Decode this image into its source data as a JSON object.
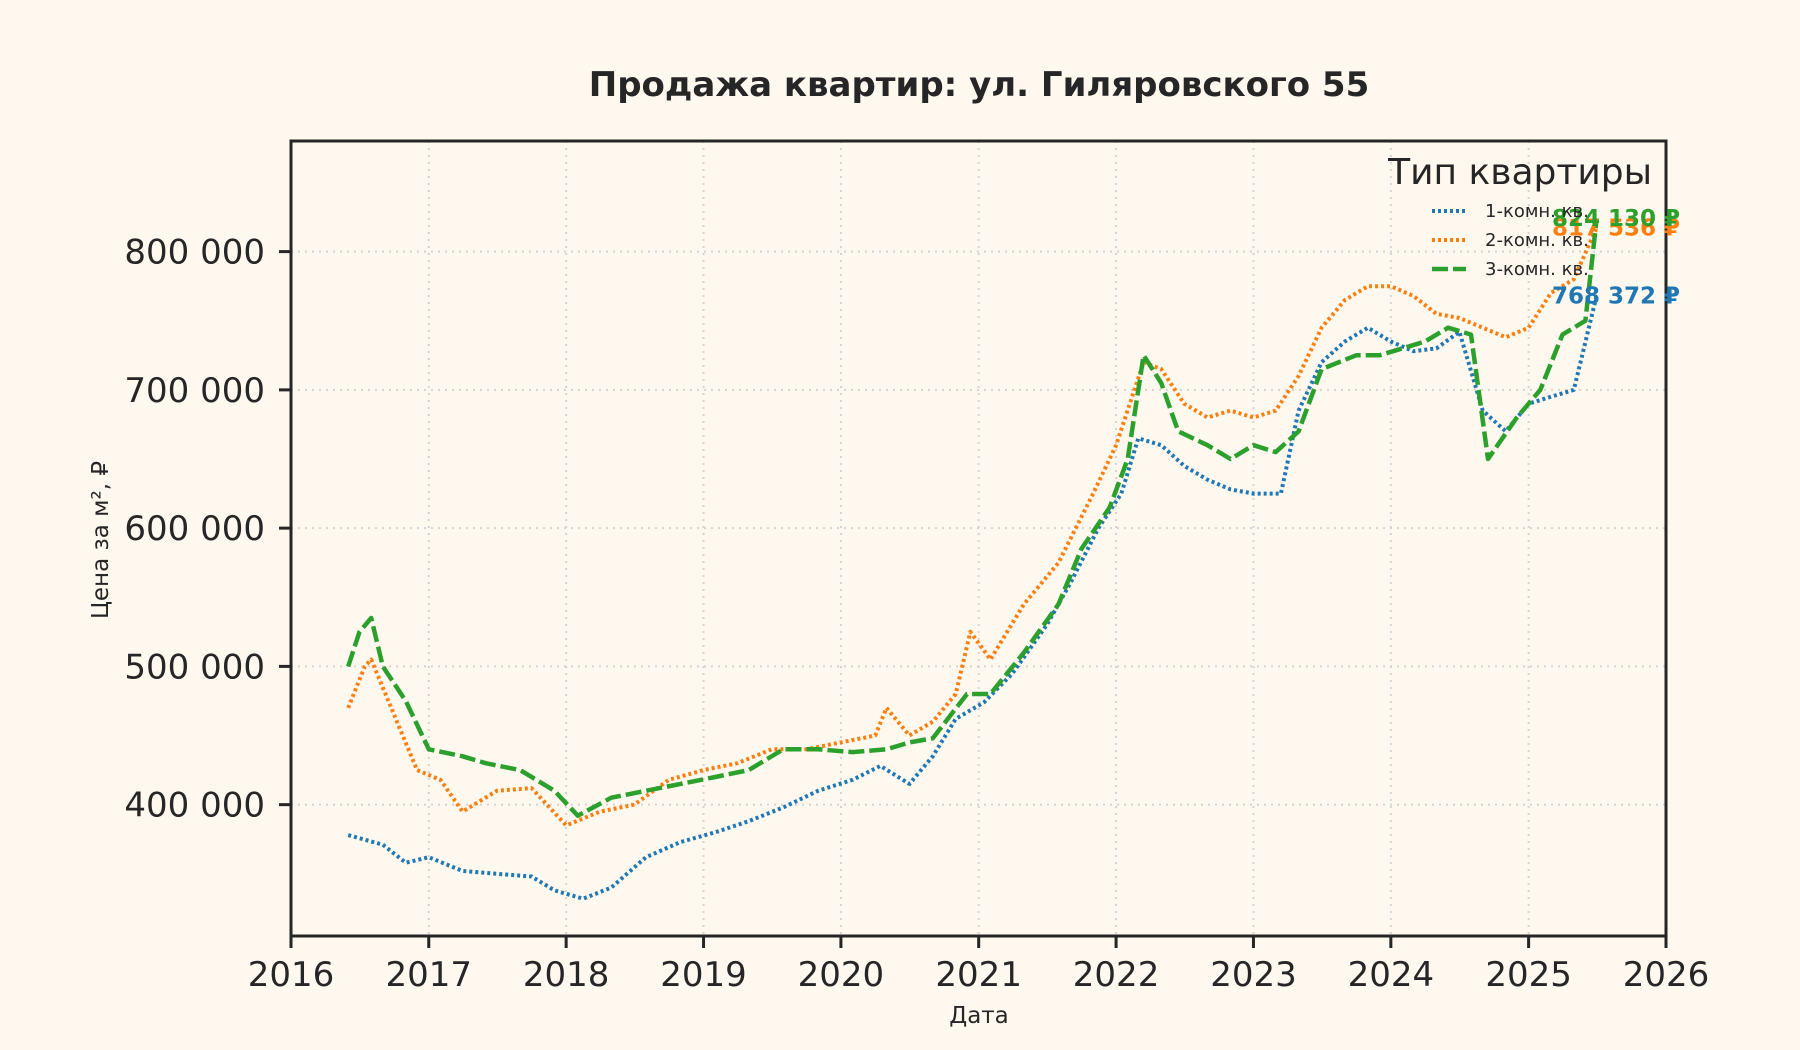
{
  "chart_data": {
    "type": "line",
    "title": "Продажа квартир: ул. Гиляровского 55",
    "xlabel": "Дата",
    "ylabel": "Цена за м², ₽",
    "xlim": [
      "2016-01-01",
      "2026-01-01"
    ],
    "ylim": [
      305000,
      880000
    ],
    "x_ticks": [
      "2016",
      "2017",
      "2018",
      "2019",
      "2020",
      "2021",
      "2022",
      "2023",
      "2024",
      "2025",
      "2026"
    ],
    "y_ticks": [
      {
        "value": 400000,
        "label": "400 000"
      },
      {
        "value": 500000,
        "label": "500 000"
      },
      {
        "value": 600000,
        "label": "600 000"
      },
      {
        "value": 700000,
        "label": "700 000"
      },
      {
        "value": 800000,
        "label": "800 000"
      }
    ],
    "grid": true,
    "legend": {
      "title": "Тип квартиры",
      "position": "top-right"
    },
    "series": [
      {
        "name": "1-комн. кв.",
        "color": "#1f77b4",
        "dash": "dotted",
        "end_label": "768 372 ₽",
        "points": [
          [
            "2016-06-01",
            378000
          ],
          [
            "2016-09-01",
            371000
          ],
          [
            "2016-11-01",
            358000
          ],
          [
            "2017-01-01",
            362000
          ],
          [
            "2017-04-01",
            352000
          ],
          [
            "2017-07-01",
            350000
          ],
          [
            "2017-10-01",
            348000
          ],
          [
            "2017-12-01",
            338000
          ],
          [
            "2018-02-15",
            332000
          ],
          [
            "2018-05-01",
            340000
          ],
          [
            "2018-08-01",
            362000
          ],
          [
            "2018-11-01",
            373000
          ],
          [
            "2019-02-01",
            380000
          ],
          [
            "2019-05-01",
            388000
          ],
          [
            "2019-08-01",
            398000
          ],
          [
            "2019-11-01",
            410000
          ],
          [
            "2020-02-01",
            418000
          ],
          [
            "2020-04-15",
            428000
          ],
          [
            "2020-07-01",
            415000
          ],
          [
            "2020-09-01",
            435000
          ],
          [
            "2020-11-01",
            462000
          ],
          [
            "2021-01-15",
            474000
          ],
          [
            "2021-04-01",
            495000
          ],
          [
            "2021-07-01",
            530000
          ],
          [
            "2021-09-01",
            560000
          ],
          [
            "2021-11-15",
            600000
          ],
          [
            "2022-01-15",
            625000
          ],
          [
            "2022-03-01",
            665000
          ],
          [
            "2022-05-01",
            660000
          ],
          [
            "2022-07-01",
            645000
          ],
          [
            "2022-09-01",
            635000
          ],
          [
            "2022-11-01",
            628000
          ],
          [
            "2023-01-01",
            625000
          ],
          [
            "2023-03-15",
            625000
          ],
          [
            "2023-05-01",
            685000
          ],
          [
            "2023-07-01",
            720000
          ],
          [
            "2023-09-01",
            735000
          ],
          [
            "2023-11-01",
            745000
          ],
          [
            "2024-01-01",
            735000
          ],
          [
            "2024-03-01",
            728000
          ],
          [
            "2024-05-01",
            730000
          ],
          [
            "2024-07-01",
            742000
          ],
          [
            "2024-09-01",
            685000
          ],
          [
            "2024-11-01",
            670000
          ],
          [
            "2025-01-01",
            690000
          ],
          [
            "2025-03-01",
            695000
          ],
          [
            "2025-05-01",
            700000
          ],
          [
            "2025-07-01",
            768372
          ]
        ]
      },
      {
        "name": "2-комн. кв.",
        "color": "#ff7f0e",
        "dash": "dotted",
        "end_label": "817 536 ₽",
        "points": [
          [
            "2016-06-01",
            470000
          ],
          [
            "2016-07-15",
            500000
          ],
          [
            "2016-08-01",
            505000
          ],
          [
            "2016-10-01",
            465000
          ],
          [
            "2016-12-01",
            425000
          ],
          [
            "2017-02-01",
            418000
          ],
          [
            "2017-04-01",
            395000
          ],
          [
            "2017-07-01",
            410000
          ],
          [
            "2017-10-01",
            412000
          ],
          [
            "2018-01-01",
            385000
          ],
          [
            "2018-04-01",
            395000
          ],
          [
            "2018-07-01",
            400000
          ],
          [
            "2018-10-01",
            418000
          ],
          [
            "2019-01-01",
            425000
          ],
          [
            "2019-04-01",
            430000
          ],
          [
            "2019-07-01",
            440000
          ],
          [
            "2019-10-01",
            440000
          ],
          [
            "2020-01-01",
            445000
          ],
          [
            "2020-04-01",
            450000
          ],
          [
            "2020-05-01",
            470000
          ],
          [
            "2020-07-01",
            450000
          ],
          [
            "2020-09-01",
            460000
          ],
          [
            "2020-11-01",
            480000
          ],
          [
            "2020-12-10",
            525000
          ],
          [
            "2021-02-01",
            505000
          ],
          [
            "2021-05-01",
            545000
          ],
          [
            "2021-08-01",
            575000
          ],
          [
            "2021-11-01",
            625000
          ],
          [
            "2022-01-01",
            660000
          ],
          [
            "2022-03-15",
            720000
          ],
          [
            "2022-05-01",
            715000
          ],
          [
            "2022-07-01",
            690000
          ],
          [
            "2022-09-01",
            680000
          ],
          [
            "2022-11-01",
            685000
          ],
          [
            "2023-01-01",
            680000
          ],
          [
            "2023-03-01",
            685000
          ],
          [
            "2023-05-01",
            710000
          ],
          [
            "2023-07-01",
            745000
          ],
          [
            "2023-09-01",
            765000
          ],
          [
            "2023-11-01",
            775000
          ],
          [
            "2024-01-01",
            775000
          ],
          [
            "2024-03-01",
            768000
          ],
          [
            "2024-05-01",
            755000
          ],
          [
            "2024-07-01",
            752000
          ],
          [
            "2024-09-01",
            745000
          ],
          [
            "2024-11-01",
            738000
          ],
          [
            "2025-01-01",
            745000
          ],
          [
            "2025-03-01",
            770000
          ],
          [
            "2025-05-01",
            780000
          ],
          [
            "2025-07-01",
            817536
          ]
        ]
      },
      {
        "name": "3-комн. кв.",
        "color": "#2ca02c",
        "dash": "dashed",
        "end_label": "824 130 ₽",
        "points": [
          [
            "2016-06-01",
            500000
          ],
          [
            "2016-07-01",
            525000
          ],
          [
            "2016-08-01",
            535000
          ],
          [
            "2016-09-01",
            500000
          ],
          [
            "2016-11-01",
            475000
          ],
          [
            "2017-01-01",
            440000
          ],
          [
            "2017-04-01",
            435000
          ],
          [
            "2017-06-01",
            430000
          ],
          [
            "2017-09-01",
            425000
          ],
          [
            "2017-12-01",
            410000
          ],
          [
            "2018-02-01",
            392000
          ],
          [
            "2018-05-01",
            405000
          ],
          [
            "2018-08-01",
            410000
          ],
          [
            "2018-11-01",
            415000
          ],
          [
            "2019-02-01",
            420000
          ],
          [
            "2019-05-01",
            425000
          ],
          [
            "2019-08-01",
            440000
          ],
          [
            "2019-11-01",
            440000
          ],
          [
            "2020-02-01",
            438000
          ],
          [
            "2020-05-01",
            440000
          ],
          [
            "2020-07-01",
            445000
          ],
          [
            "2020-09-01",
            448000
          ],
          [
            "2020-12-01",
            480000
          ],
          [
            "2021-02-01",
            480000
          ],
          [
            "2021-05-01",
            510000
          ],
          [
            "2021-08-01",
            545000
          ],
          [
            "2021-10-01",
            585000
          ],
          [
            "2021-12-15",
            615000
          ],
          [
            "2022-02-01",
            650000
          ],
          [
            "2022-03-15",
            725000
          ],
          [
            "2022-05-01",
            705000
          ],
          [
            "2022-06-15",
            670000
          ],
          [
            "2022-09-01",
            660000
          ],
          [
            "2022-11-01",
            650000
          ],
          [
            "2023-01-01",
            660000
          ],
          [
            "2023-03-01",
            655000
          ],
          [
            "2023-05-01",
            670000
          ],
          [
            "2023-07-01",
            715000
          ],
          [
            "2023-10-01",
            725000
          ],
          [
            "2023-12-01",
            725000
          ],
          [
            "2024-02-01",
            730000
          ],
          [
            "2024-04-01",
            735000
          ],
          [
            "2024-06-01",
            745000
          ],
          [
            "2024-08-01",
            740000
          ],
          [
            "2024-09-15",
            650000
          ],
          [
            "2024-12-01",
            680000
          ],
          [
            "2025-02-01",
            700000
          ],
          [
            "2025-04-01",
            740000
          ],
          [
            "2025-06-01",
            750000
          ],
          [
            "2025-07-01",
            824130
          ]
        ]
      }
    ]
  }
}
